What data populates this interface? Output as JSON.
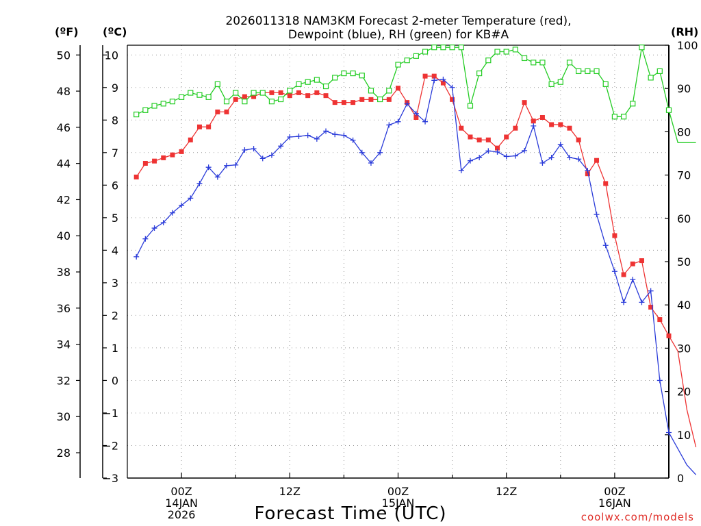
{
  "chart_data": {
    "type": "line",
    "title": "2026011318 NAM3KM Forecast 2-meter Temperature (red),",
    "subtitle": "Dewpoint (blue), RH (green) for KB#A",
    "xlabel": "Forecast Time (UTC)",
    "unit_labels": {
      "f": "(ºF)",
      "c": "(ºC)",
      "rh": "(RH)"
    },
    "credit": "coolwx.com/models",
    "x_hours": [
      19,
      20,
      21,
      22,
      23,
      24,
      25,
      26,
      27,
      28,
      29,
      30,
      31,
      32,
      33,
      34,
      35,
      36,
      37,
      38,
      39,
      40,
      41,
      42,
      43,
      44,
      45,
      46,
      47,
      48,
      49,
      50,
      51,
      52,
      53,
      54,
      55,
      56,
      57,
      58,
      59,
      60,
      61,
      62,
      63,
      64,
      65,
      66,
      67,
      68,
      69,
      70,
      71,
      72,
      73,
      74,
      75,
      76,
      77,
      78,
      79,
      80,
      81
    ],
    "xlim": [
      18,
      78
    ],
    "x_ticks": [
      {
        "hour": 24,
        "labels": [
          "00Z",
          "14JAN",
          "2026"
        ]
      },
      {
        "hour": 36,
        "labels": [
          "12Z"
        ]
      },
      {
        "hour": 48,
        "labels": [
          "00Z",
          "15JAN"
        ]
      },
      {
        "hour": 60,
        "labels": [
          "12Z"
        ]
      },
      {
        "hour": 72,
        "labels": [
          "00Z",
          "16JAN"
        ]
      }
    ],
    "left_c_axis": {
      "range": [
        -3,
        10.3
      ],
      "ticks": [
        "-3",
        "-2",
        "-1",
        "0",
        "1",
        "2",
        "3",
        "4",
        "5",
        "6",
        "7",
        "8",
        "9",
        "10"
      ]
    },
    "left_f_axis": {
      "range": [
        26.6,
        50.54
      ],
      "ticks": [
        "28",
        "30",
        "32",
        "34",
        "36",
        "38",
        "40",
        "42",
        "44",
        "46",
        "48",
        "50"
      ]
    },
    "right_rh_axis": {
      "range": [
        0,
        100
      ],
      "ticks": [
        "0",
        "10",
        "20",
        "30",
        "40",
        "50",
        "60",
        "70",
        "80",
        "90",
        "100"
      ]
    },
    "series": [
      {
        "name": "Temperature",
        "units": "C",
        "color": "#ee3333",
        "marker": "filled-square",
        "values": [
          6.25,
          6.67,
          6.74,
          6.84,
          6.93,
          7.03,
          7.39,
          7.79,
          7.79,
          8.25,
          8.25,
          8.63,
          8.72,
          8.72,
          8.84,
          8.84,
          8.84,
          8.75,
          8.84,
          8.75,
          8.84,
          8.75,
          8.54,
          8.54,
          8.54,
          8.63,
          8.63,
          8.63,
          8.63,
          8.98,
          8.54,
          8.08,
          9.35,
          9.35,
          9.14,
          8.63,
          7.75,
          7.48,
          7.39,
          7.39,
          7.14,
          7.48,
          7.75,
          8.54,
          7.97,
          8.08,
          7.86,
          7.86,
          7.75,
          7.39,
          6.35,
          6.76,
          6.05,
          4.45,
          3.25,
          3.58,
          3.68,
          2.25,
          1.87,
          1.37,
          0.9,
          -0.9,
          -2.05
        ]
      },
      {
        "name": "Dewpoint",
        "units": "C",
        "color": "#2a3bd9",
        "marker": "plus",
        "values": [
          3.8,
          4.35,
          4.68,
          4.85,
          5.15,
          5.38,
          5.6,
          6.05,
          6.55,
          6.25,
          6.6,
          6.62,
          7.08,
          7.12,
          6.82,
          6.92,
          7.2,
          7.48,
          7.5,
          7.53,
          7.42,
          7.66,
          7.56,
          7.53,
          7.38,
          7.0,
          6.68,
          7.0,
          7.85,
          7.95,
          8.5,
          8.2,
          7.95,
          9.22,
          9.25,
          9.0,
          6.45,
          6.75,
          6.85,
          7.05,
          7.02,
          6.88,
          6.9,
          7.06,
          7.82,
          6.68,
          6.85,
          7.25,
          6.85,
          6.8,
          6.45,
          5.1,
          4.15,
          3.35,
          2.4,
          3.1,
          2.4,
          2.75,
          0.0,
          -1.6,
          -2.1,
          -2.6,
          -2.9
        ]
      },
      {
        "name": "RH",
        "units": "%",
        "color": "#22cc22",
        "marker": "open-square",
        "values": [
          84,
          85,
          86,
          86.5,
          87,
          88,
          89,
          88.5,
          88,
          91,
          87,
          89,
          87,
          89,
          89,
          87,
          87.5,
          89.5,
          91,
          91.5,
          92,
          90.5,
          92.5,
          93.5,
          93.5,
          93,
          89.5,
          87.5,
          89.5,
          95.5,
          96.5,
          97.5,
          98.5,
          99.5,
          99.5,
          99.5,
          99.5,
          86,
          93.5,
          96.5,
          98.5,
          98.5,
          99,
          97,
          96,
          96,
          91,
          91.5,
          96,
          94,
          94,
          94,
          91,
          83.5,
          83.5,
          86.5,
          99.5,
          92.5,
          94,
          85,
          77.5,
          77.5,
          77.5
        ]
      }
    ]
  }
}
